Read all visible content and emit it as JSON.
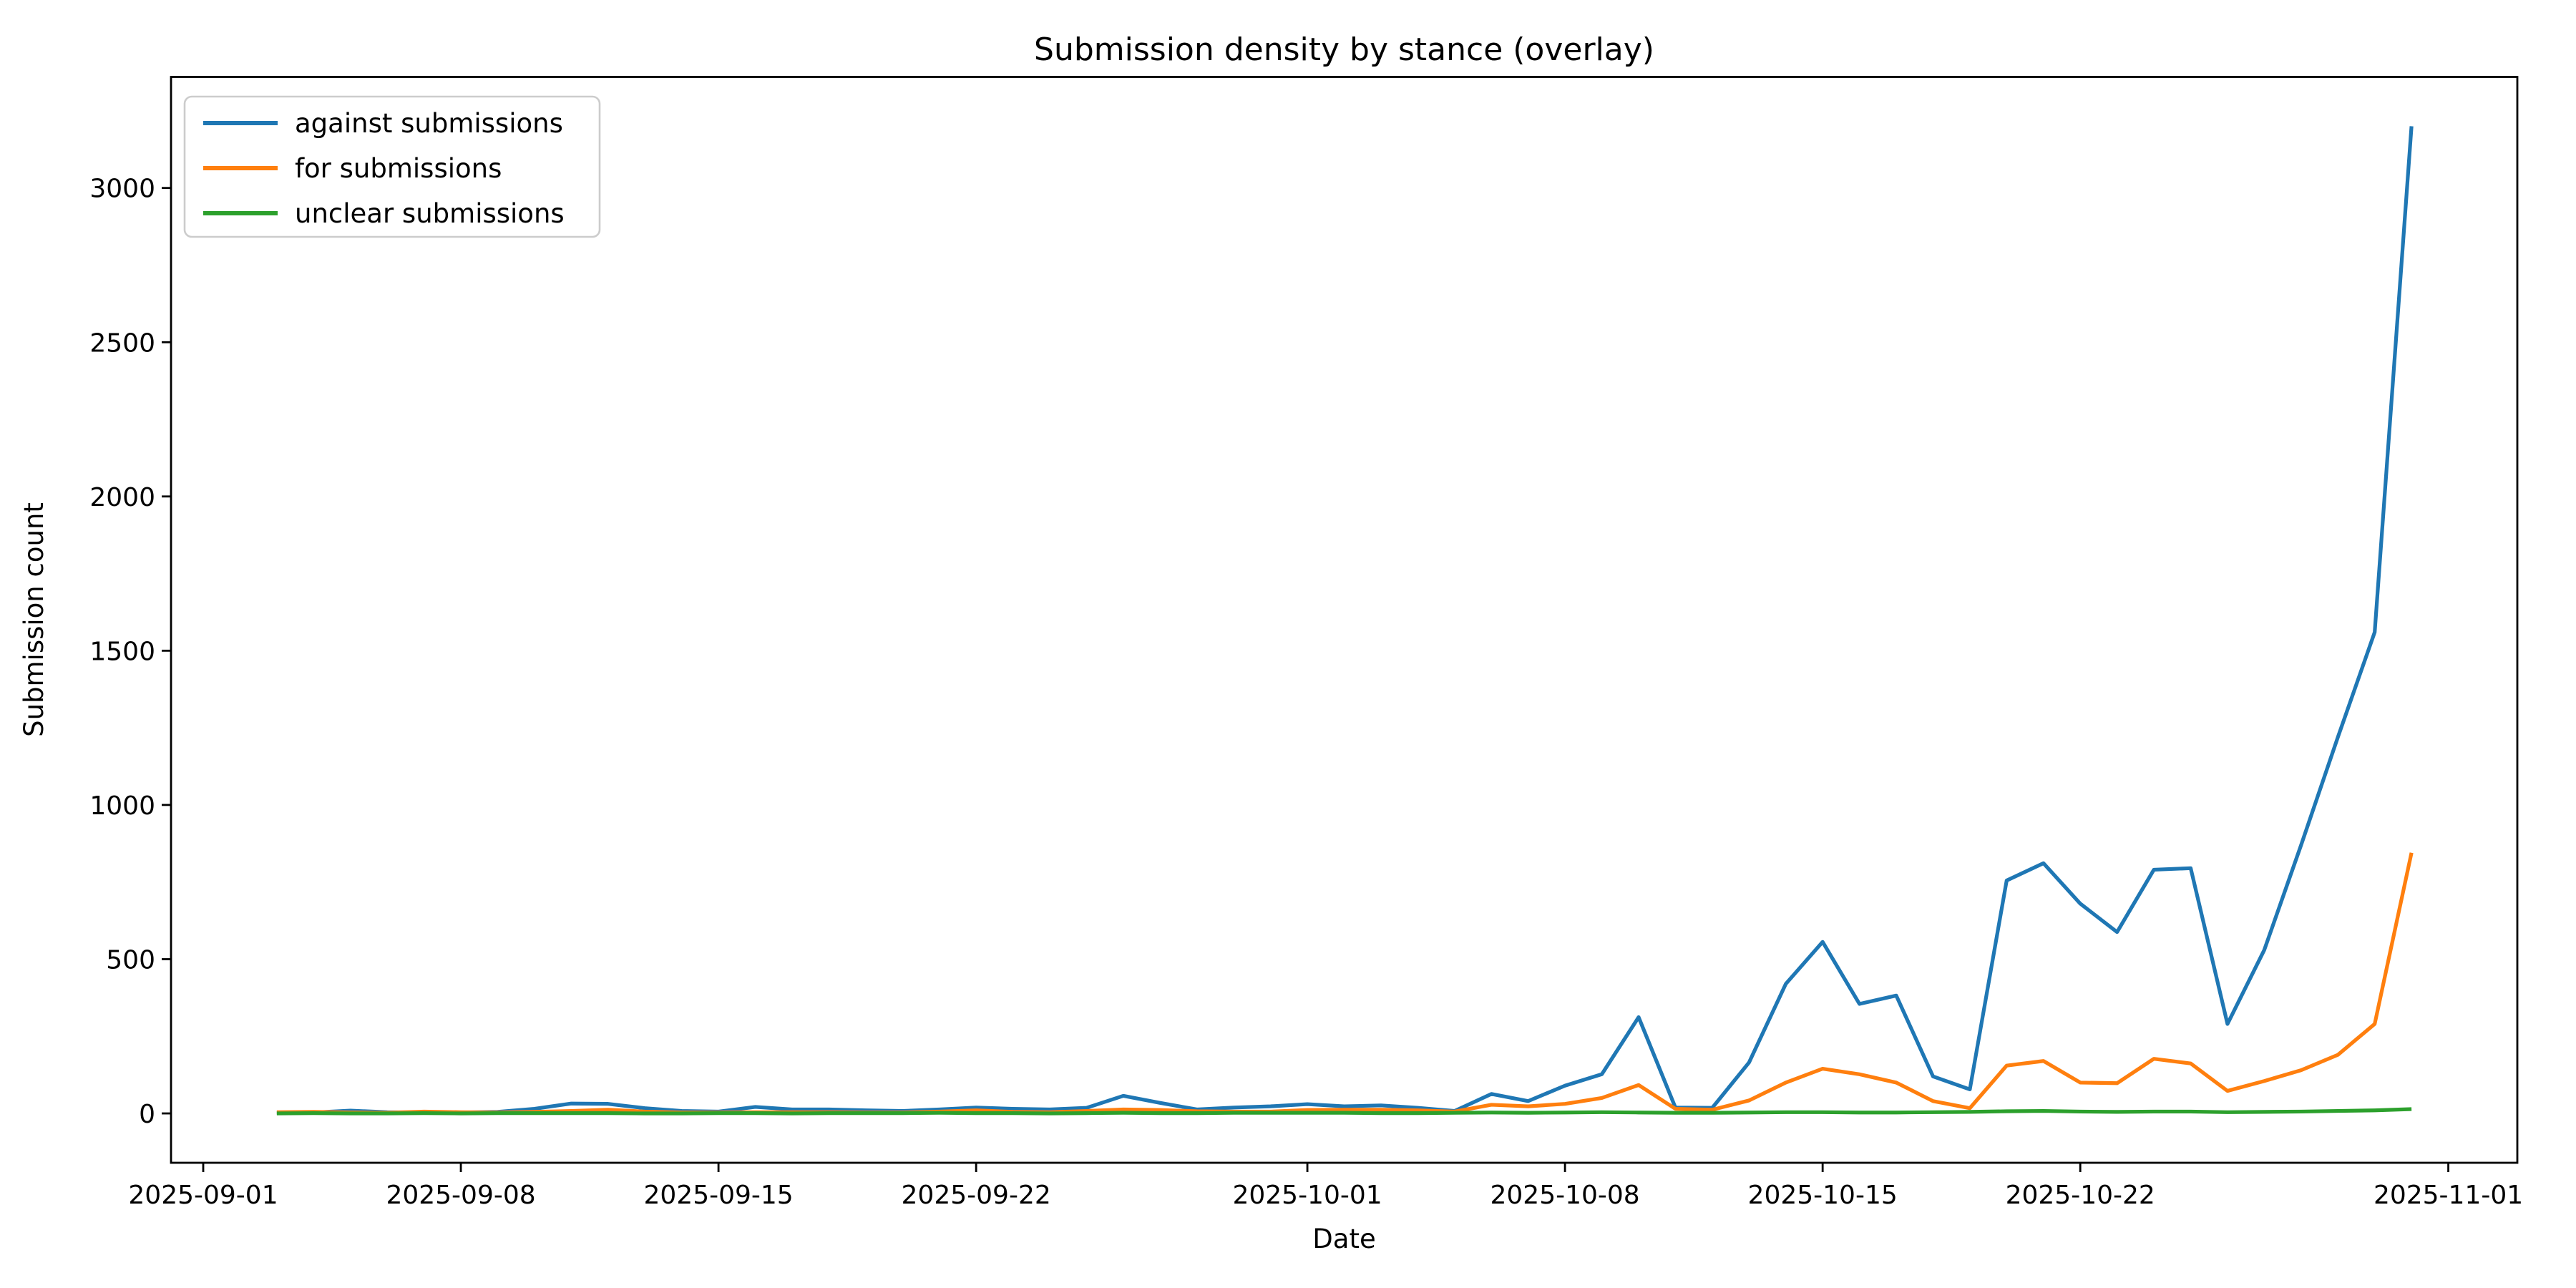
{
  "figure": {
    "title": "Submission density by stance (overlay)",
    "xlabel": "Date",
    "ylabel": "Submission count",
    "background_color": "#ffffff",
    "spine_color": "#000000"
  },
  "legend": {
    "position": "upper left",
    "entries": [
      {
        "label": "against submissions",
        "color": "#1f77b4"
      },
      {
        "label": "for submissions",
        "color": "#ff7f0e"
      },
      {
        "label": "unclear submissions",
        "color": "#2ca02c"
      }
    ]
  },
  "chart_data": {
    "type": "line",
    "title": "Submission density by stance (overlay)",
    "xlabel": "Date",
    "ylabel": "Submission count",
    "grid": false,
    "legend_position": "upper left",
    "x_ticks": [
      "2025-09-01",
      "2025-09-08",
      "2025-09-15",
      "2025-09-22",
      "2025-10-01",
      "2025-10-08",
      "2025-10-15",
      "2025-10-22",
      "2025-11-01"
    ],
    "y_ticks": [
      0,
      500,
      1000,
      1500,
      2000,
      2500,
      3000
    ],
    "xlim_days": [
      -0.875,
      62.875
    ],
    "ylim": [
      -160,
      3360
    ],
    "x": [
      "2025-09-03",
      "2025-09-04",
      "2025-09-05",
      "2025-09-06",
      "2025-09-07",
      "2025-09-08",
      "2025-09-09",
      "2025-09-10",
      "2025-09-11",
      "2025-09-12",
      "2025-09-13",
      "2025-09-14",
      "2025-09-15",
      "2025-09-16",
      "2025-09-17",
      "2025-09-18",
      "2025-09-19",
      "2025-09-20",
      "2025-09-21",
      "2025-09-22",
      "2025-09-23",
      "2025-09-24",
      "2025-09-25",
      "2025-09-26",
      "2025-09-27",
      "2025-09-28",
      "2025-09-29",
      "2025-09-30",
      "2025-10-01",
      "2025-10-02",
      "2025-10-03",
      "2025-10-04",
      "2025-10-05",
      "2025-10-06",
      "2025-10-07",
      "2025-10-08",
      "2025-10-09",
      "2025-10-10",
      "2025-10-11",
      "2025-10-12",
      "2025-10-13",
      "2025-10-14",
      "2025-10-15",
      "2025-10-16",
      "2025-10-17",
      "2025-10-18",
      "2025-10-19",
      "2025-10-20",
      "2025-10-21",
      "2025-10-22",
      "2025-10-23",
      "2025-10-24",
      "2025-10-25",
      "2025-10-26",
      "2025-10-27",
      "2025-10-28",
      "2025-10-29",
      "2025-10-30",
      "2025-10-31"
    ],
    "series": [
      {
        "name": "against submissions",
        "color": "#1f77b4",
        "values": [
          2,
          3,
          9,
          4,
          3,
          3,
          5,
          15,
          32,
          31,
          17,
          8,
          6,
          21,
          13,
          13,
          10,
          8,
          13,
          19,
          15,
          13,
          18,
          57,
          34,
          13,
          19,
          23,
          30,
          23,
          26,
          18,
          8,
          63,
          40,
          90,
          127,
          312,
          19,
          18,
          165,
          420,
          556,
          355,
          382,
          120,
          78,
          755,
          811,
          680,
          588,
          790,
          795,
          290,
          530,
          870,
          1220,
          1560,
          3200
        ]
      },
      {
        "name": "for submissions",
        "color": "#ff7f0e",
        "values": [
          4,
          5,
          3,
          2,
          6,
          4,
          3,
          5,
          8,
          12,
          6,
          3,
          3,
          4,
          4,
          4,
          3,
          3,
          6,
          10,
          5,
          4,
          8,
          13,
          11,
          7,
          6,
          6,
          11,
          12,
          12,
          10,
          6,
          28,
          23,
          31,
          50,
          92,
          15,
          12,
          42,
          100,
          145,
          127,
          100,
          40,
          17,
          155,
          170,
          100,
          98,
          177,
          162,
          73,
          105,
          140,
          190,
          290,
          845
        ]
      },
      {
        "name": "unclear submissions",
        "color": "#2ca02c",
        "values": [
          0,
          1,
          0,
          0,
          1,
          0,
          1,
          1,
          1,
          1,
          0,
          0,
          1,
          1,
          0,
          1,
          1,
          1,
          2,
          1,
          1,
          0,
          1,
          2,
          1,
          1,
          2,
          2,
          2,
          2,
          1,
          1,
          2,
          3,
          2,
          3,
          4,
          3,
          2,
          2,
          3,
          4,
          4,
          3,
          3,
          4,
          5,
          7,
          8,
          6,
          5,
          6,
          6,
          4,
          5,
          6,
          8,
          10,
          14
        ]
      }
    ]
  }
}
